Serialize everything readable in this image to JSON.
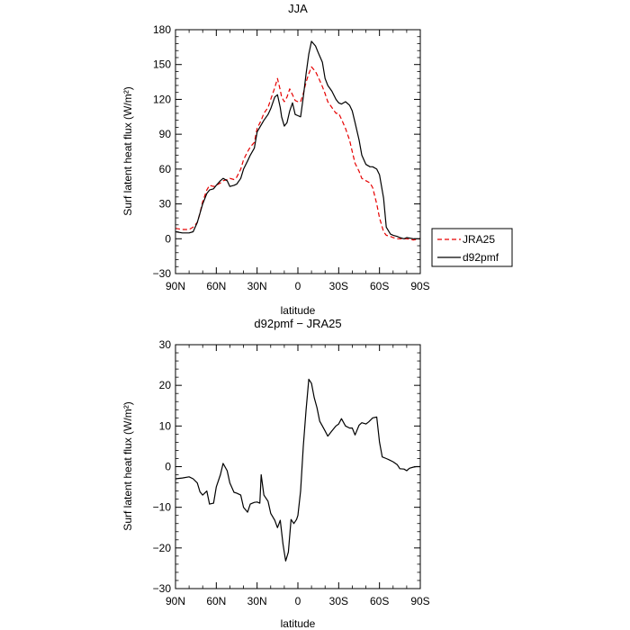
{
  "chart_data": [
    {
      "type": "line",
      "title": "JJA",
      "xlabel": "latitude",
      "ylabel": "Surf latent heat flux (W/m²)",
      "xlim": [
        90,
        -90
      ],
      "ylim": [
        -30,
        180
      ],
      "xticks": [
        90,
        60,
        30,
        0,
        -30,
        -60,
        -90
      ],
      "xtick_labels": [
        "90N",
        "60N",
        "30N",
        "0",
        "30S",
        "60S",
        "90S"
      ],
      "yticks": [
        -30,
        0,
        30,
        60,
        90,
        120,
        150,
        180
      ],
      "ytick_labels": [
        "−30",
        "0",
        "30",
        "60",
        "90",
        "120",
        "150",
        "180"
      ],
      "legend": {
        "position": "right"
      },
      "series": [
        {
          "name": "JRA25",
          "color": "#e60000",
          "style": "dashed",
          "x": [
            90,
            85,
            80,
            77,
            74,
            72,
            70,
            67,
            65,
            62,
            60,
            57,
            55,
            52,
            50,
            47,
            45,
            42,
            40,
            37,
            35,
            32,
            30,
            27,
            25,
            22,
            20,
            17,
            15,
            13,
            12,
            10,
            8,
            6,
            4,
            2,
            0,
            -2,
            -4,
            -6,
            -8,
            -10,
            -13,
            -15,
            -18,
            -20,
            -22,
            -25,
            -28,
            -30,
            -32,
            -35,
            -38,
            -40,
            -42,
            -45,
            -47,
            -50,
            -53,
            -55,
            -58,
            -60,
            -63,
            -65,
            -68,
            -70,
            -73,
            -75,
            -78,
            -80,
            -85,
            -90
          ],
          "y": [
            9,
            8,
            8,
            10,
            14,
            22,
            32,
            42,
            46,
            45,
            46,
            48,
            50,
            51,
            52,
            51,
            53,
            60,
            68,
            75,
            79,
            83,
            95,
            102,
            108,
            113,
            120,
            130,
            138,
            128,
            122,
            118,
            122,
            129,
            124,
            119,
            118,
            118,
            125,
            135,
            142,
            148,
            144,
            139,
            131,
            125,
            118,
            113,
            108,
            108,
            103,
            95,
            85,
            75,
            65,
            58,
            52,
            50,
            48,
            44,
            30,
            18,
            6,
            3,
            2,
            1,
            0,
            0,
            0,
            0,
            -1,
            0
          ]
        },
        {
          "name": "d92pmf",
          "color": "#000000",
          "style": "solid",
          "x": [
            90,
            85,
            80,
            77,
            74,
            72,
            70,
            67,
            65,
            62,
            60,
            57,
            55,
            52,
            50,
            47,
            45,
            42,
            40,
            37,
            35,
            32,
            30,
            27,
            25,
            22,
            20,
            17,
            15,
            13,
            12,
            10,
            8,
            6,
            4,
            2,
            0,
            -2,
            -4,
            -6,
            -8,
            -10,
            -13,
            -15,
            -18,
            -20,
            -22,
            -25,
            -28,
            -30,
            -32,
            -35,
            -38,
            -40,
            -42,
            -45,
            -47,
            -50,
            -53,
            -55,
            -58,
            -60,
            -63,
            -65,
            -68,
            -70,
            -73,
            -75,
            -78,
            -80,
            -85,
            -90
          ],
          "y": [
            6,
            5,
            5,
            6,
            14,
            22,
            30,
            39,
            42,
            43,
            46,
            50,
            52,
            50,
            45,
            46,
            47,
            52,
            60,
            67,
            72,
            78,
            92,
            98,
            102,
            107,
            112,
            122,
            124,
            113,
            105,
            97,
            100,
            110,
            117,
            107,
            106,
            105,
            122,
            142,
            159,
            170,
            166,
            160,
            152,
            138,
            132,
            127,
            120,
            117,
            116,
            118,
            115,
            110,
            100,
            85,
            72,
            64,
            62,
            62,
            60,
            55,
            35,
            10,
            4,
            3,
            2,
            1,
            0,
            1,
            0,
            0
          ]
        }
      ]
    },
    {
      "type": "line",
      "title": "d92pmf − JRA25",
      "xlabel": "latitude",
      "ylabel": "Surf latent heat flux (W/m²)",
      "xlim": [
        90,
        -90
      ],
      "ylim": [
        -30,
        30
      ],
      "xticks": [
        90,
        60,
        30,
        0,
        -30,
        -60,
        -90
      ],
      "xtick_labels": [
        "90N",
        "60N",
        "30N",
        "0",
        "30S",
        "60S",
        "90S"
      ],
      "yticks": [
        -30,
        -20,
        -10,
        0,
        10,
        20,
        30
      ],
      "ytick_labels": [
        "−30",
        "−20",
        "−10",
        "0",
        "10",
        "20",
        "30"
      ],
      "series": [
        {
          "color": "#000000",
          "style": "solid",
          "x": [
            90,
            85,
            80,
            77,
            74,
            72,
            70,
            67,
            65,
            62,
            60,
            57,
            55,
            52,
            50,
            47,
            45,
            42,
            40,
            37,
            35,
            32,
            30,
            28,
            27,
            25,
            22,
            20,
            17,
            15,
            13,
            11,
            9,
            7,
            5,
            3,
            1,
            0,
            -2,
            -4,
            -6,
            -8,
            -10,
            -12,
            -14,
            -16,
            -18,
            -20,
            -22,
            -25,
            -28,
            -30,
            -32,
            -35,
            -38,
            -40,
            -42,
            -45,
            -47,
            -50,
            -52,
            -55,
            -58,
            -60,
            -62,
            -65,
            -67,
            -70,
            -73,
            -75,
            -78,
            -80,
            -82,
            -85,
            -87,
            -90
          ],
          "y": [
            -3,
            -2.8,
            -2.5,
            -3,
            -4,
            -6.2,
            -7,
            -6,
            -9.2,
            -9,
            -5,
            -2,
            0.8,
            -1,
            -4,
            -6.3,
            -6.5,
            -7,
            -10,
            -11.2,
            -9.2,
            -8.8,
            -8.7,
            -9,
            -2,
            -7,
            -8.5,
            -11.5,
            -13.2,
            -15,
            -13.2,
            -19,
            -23.2,
            -21,
            -13,
            -14,
            -13,
            -12,
            -6,
            5,
            14,
            21.5,
            20.5,
            17,
            14.5,
            11.2,
            10,
            8.8,
            7.5,
            8.8,
            10,
            10.5,
            11.8,
            10,
            9.5,
            9.5,
            7.8,
            10.2,
            10.8,
            10.5,
            11,
            12,
            12.2,
            6,
            2.4,
            2,
            1.7,
            1.2,
            0.5,
            -0.5,
            -0.6,
            -1,
            -0.4,
            -0.1,
            0,
            0
          ]
        }
      ]
    }
  ]
}
